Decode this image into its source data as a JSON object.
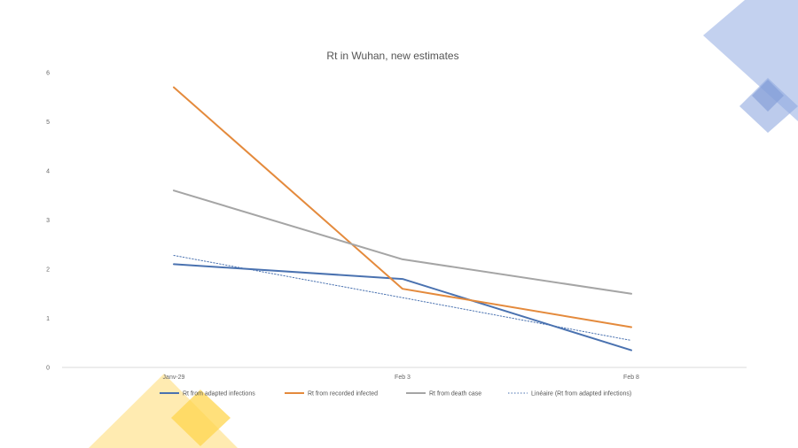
{
  "decoration": {
    "accent_blue": "#8fa9e0",
    "accent_yellow": "#ffd54f"
  },
  "chart_data": {
    "type": "line",
    "title": "Rt in Wuhan, new estimates",
    "xlabel": "",
    "ylabel": "",
    "categories": [
      "Janv-29",
      "Feb 3",
      "Feb 8"
    ],
    "ylim": [
      0,
      6
    ],
    "yticks": [
      "0",
      "1",
      "2",
      "3",
      "4",
      "5",
      "6"
    ],
    "grid": false,
    "legend_position": "bottom",
    "series": [
      {
        "name": "Rt from adapted infections",
        "values": [
          2.1,
          1.8,
          0.35
        ],
        "color": "#4a72b0",
        "style": "solid"
      },
      {
        "name": "Rt from recorded infected",
        "values": [
          5.7,
          1.6,
          0.82
        ],
        "color": "#e48a3c",
        "style": "solid"
      },
      {
        "name": "Rt from death case",
        "values": [
          3.6,
          2.2,
          1.5
        ],
        "color": "#a5a5a5",
        "style": "solid"
      },
      {
        "name": "Linéaire (Rt from adapted infections)",
        "values": [
          2.28,
          1.42,
          0.55
        ],
        "color": "#4a72b0",
        "style": "dotted"
      }
    ]
  }
}
